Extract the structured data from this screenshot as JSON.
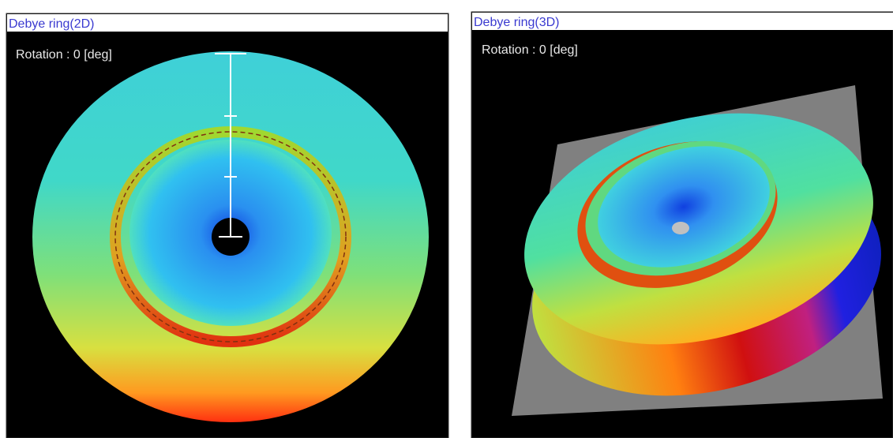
{
  "panels": [
    {
      "title": "Debye ring(2D)",
      "rotation_label": "Rotation : 0 [deg]"
    },
    {
      "title": "Debye ring(3D)",
      "rotation_label": "Rotation : 0 [deg]"
    }
  ]
}
